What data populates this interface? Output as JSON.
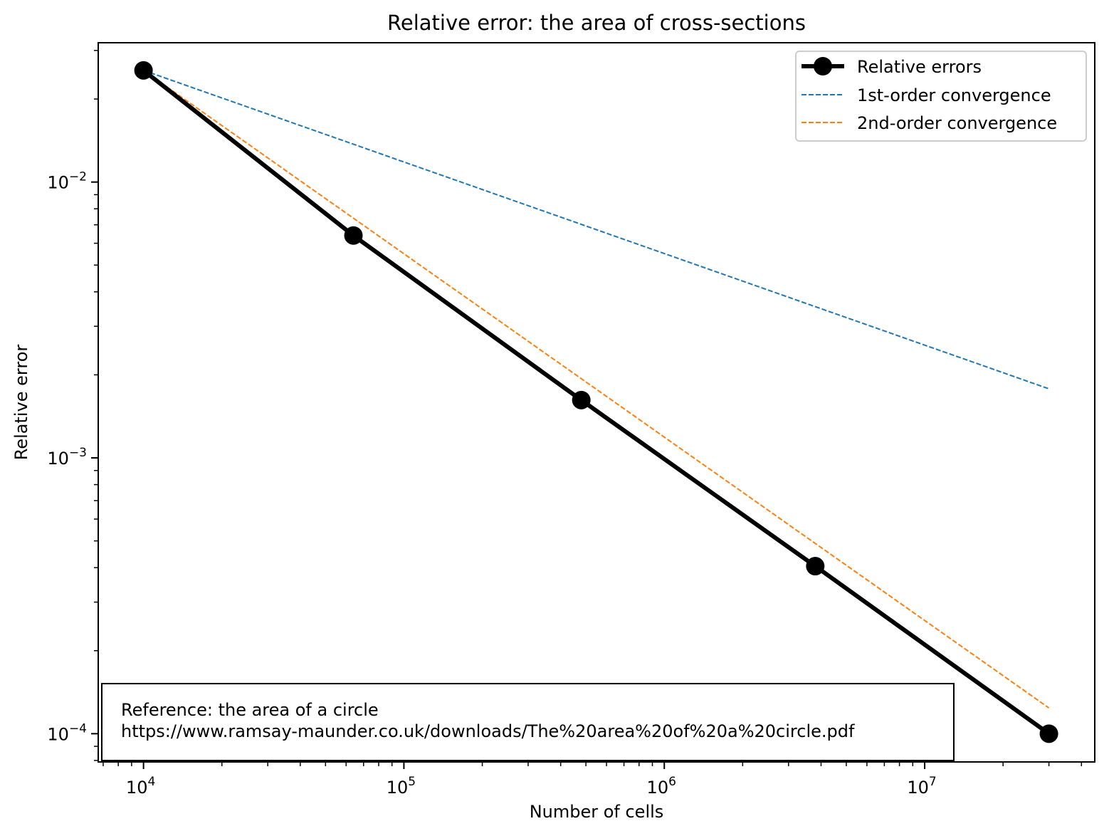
{
  "chart_data": {
    "type": "line",
    "title": "Relative error: the area of cross-sections",
    "xlabel": "Number of cells",
    "ylabel": "Relative error",
    "xscale": "log",
    "yscale": "log",
    "xlim": [
      6700,
      45000000
    ],
    "ylim": [
      7.9e-05,
      0.032
    ],
    "x_ticks": [
      {
        "value": 10000,
        "base": "10",
        "exp": "4"
      },
      {
        "value": 100000,
        "base": "10",
        "exp": "5"
      },
      {
        "value": 1000000,
        "base": "10",
        "exp": "6"
      },
      {
        "value": 10000000,
        "base": "10",
        "exp": "7"
      }
    ],
    "y_ticks": [
      {
        "value": 0.01,
        "base": "10",
        "exp": "−2"
      },
      {
        "value": 0.001,
        "base": "10",
        "exp": "−3"
      },
      {
        "value": 0.0001,
        "base": "10",
        "exp": "−4"
      }
    ],
    "grid": false,
    "legend_position": "top-right",
    "series": [
      {
        "name": "Relative errors",
        "style": "solid-markers",
        "color": "#000000",
        "x": [
          10000,
          64000,
          480000,
          3800000,
          30000000
        ],
        "y": [
          0.0254,
          0.0064,
          0.00162,
          0.000405,
          0.0001
        ]
      },
      {
        "name": "1st-order convergence",
        "style": "dashed",
        "color": "#1f77b4",
        "x": [
          10000,
          30000000
        ],
        "y": [
          0.0254,
          0.00178
        ]
      },
      {
        "name": "2nd-order convergence",
        "style": "dashed",
        "color": "#ff7f0e",
        "x": [
          10000,
          30000000
        ],
        "y": [
          0.0254,
          0.000124
        ]
      }
    ],
    "annotation": {
      "lines": [
        "Reference: the area of a circle",
        "https://www.ramsay-maunder.co.uk/downloads/The%20area%20of%20a%20circle.pdf"
      ]
    }
  }
}
